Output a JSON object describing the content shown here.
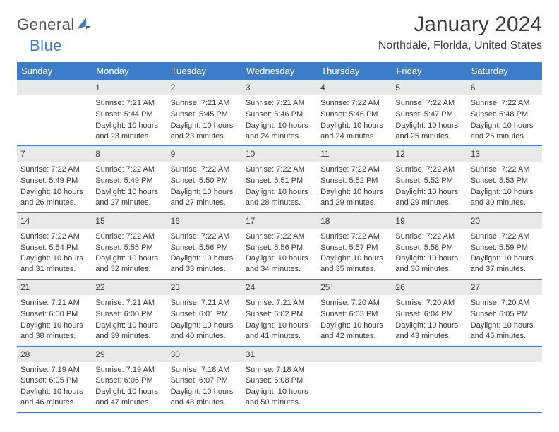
{
  "brand": {
    "part1": "General",
    "part2": "Blue"
  },
  "title": "January 2024",
  "location": "Northdale, Florida, United States",
  "colors": {
    "accent": "#3d7cc9",
    "daynum_bg": "#e9e9e9",
    "text": "#3a3a3a",
    "background": "#ffffff"
  },
  "dayHeaders": [
    "Sunday",
    "Monday",
    "Tuesday",
    "Wednesday",
    "Thursday",
    "Friday",
    "Saturday"
  ],
  "weeks": [
    [
      null,
      {
        "n": "1",
        "sr": "Sunrise: 7:21 AM",
        "ss": "Sunset: 5:44 PM",
        "dl": "Daylight: 10 hours and 23 minutes."
      },
      {
        "n": "2",
        "sr": "Sunrise: 7:21 AM",
        "ss": "Sunset: 5:45 PM",
        "dl": "Daylight: 10 hours and 23 minutes."
      },
      {
        "n": "3",
        "sr": "Sunrise: 7:21 AM",
        "ss": "Sunset: 5:46 PM",
        "dl": "Daylight: 10 hours and 24 minutes."
      },
      {
        "n": "4",
        "sr": "Sunrise: 7:22 AM",
        "ss": "Sunset: 5:46 PM",
        "dl": "Daylight: 10 hours and 24 minutes."
      },
      {
        "n": "5",
        "sr": "Sunrise: 7:22 AM",
        "ss": "Sunset: 5:47 PM",
        "dl": "Daylight: 10 hours and 25 minutes."
      },
      {
        "n": "6",
        "sr": "Sunrise: 7:22 AM",
        "ss": "Sunset: 5:48 PM",
        "dl": "Daylight: 10 hours and 25 minutes."
      }
    ],
    [
      {
        "n": "7",
        "sr": "Sunrise: 7:22 AM",
        "ss": "Sunset: 5:49 PM",
        "dl": "Daylight: 10 hours and 26 minutes."
      },
      {
        "n": "8",
        "sr": "Sunrise: 7:22 AM",
        "ss": "Sunset: 5:49 PM",
        "dl": "Daylight: 10 hours and 27 minutes."
      },
      {
        "n": "9",
        "sr": "Sunrise: 7:22 AM",
        "ss": "Sunset: 5:50 PM",
        "dl": "Daylight: 10 hours and 27 minutes."
      },
      {
        "n": "10",
        "sr": "Sunrise: 7:22 AM",
        "ss": "Sunset: 5:51 PM",
        "dl": "Daylight: 10 hours and 28 minutes."
      },
      {
        "n": "11",
        "sr": "Sunrise: 7:22 AM",
        "ss": "Sunset: 5:52 PM",
        "dl": "Daylight: 10 hours and 29 minutes."
      },
      {
        "n": "12",
        "sr": "Sunrise: 7:22 AM",
        "ss": "Sunset: 5:52 PM",
        "dl": "Daylight: 10 hours and 29 minutes."
      },
      {
        "n": "13",
        "sr": "Sunrise: 7:22 AM",
        "ss": "Sunset: 5:53 PM",
        "dl": "Daylight: 10 hours and 30 minutes."
      }
    ],
    [
      {
        "n": "14",
        "sr": "Sunrise: 7:22 AM",
        "ss": "Sunset: 5:54 PM",
        "dl": "Daylight: 10 hours and 31 minutes."
      },
      {
        "n": "15",
        "sr": "Sunrise: 7:22 AM",
        "ss": "Sunset: 5:55 PM",
        "dl": "Daylight: 10 hours and 32 minutes."
      },
      {
        "n": "16",
        "sr": "Sunrise: 7:22 AM",
        "ss": "Sunset: 5:56 PM",
        "dl": "Daylight: 10 hours and 33 minutes."
      },
      {
        "n": "17",
        "sr": "Sunrise: 7:22 AM",
        "ss": "Sunset: 5:56 PM",
        "dl": "Daylight: 10 hours and 34 minutes."
      },
      {
        "n": "18",
        "sr": "Sunrise: 7:22 AM",
        "ss": "Sunset: 5:57 PM",
        "dl": "Daylight: 10 hours and 35 minutes."
      },
      {
        "n": "19",
        "sr": "Sunrise: 7:22 AM",
        "ss": "Sunset: 5:58 PM",
        "dl": "Daylight: 10 hours and 36 minutes."
      },
      {
        "n": "20",
        "sr": "Sunrise: 7:22 AM",
        "ss": "Sunset: 5:59 PM",
        "dl": "Daylight: 10 hours and 37 minutes."
      }
    ],
    [
      {
        "n": "21",
        "sr": "Sunrise: 7:21 AM",
        "ss": "Sunset: 6:00 PM",
        "dl": "Daylight: 10 hours and 38 minutes."
      },
      {
        "n": "22",
        "sr": "Sunrise: 7:21 AM",
        "ss": "Sunset: 6:00 PM",
        "dl": "Daylight: 10 hours and 39 minutes."
      },
      {
        "n": "23",
        "sr": "Sunrise: 7:21 AM",
        "ss": "Sunset: 6:01 PM",
        "dl": "Daylight: 10 hours and 40 minutes."
      },
      {
        "n": "24",
        "sr": "Sunrise: 7:21 AM",
        "ss": "Sunset: 6:02 PM",
        "dl": "Daylight: 10 hours and 41 minutes."
      },
      {
        "n": "25",
        "sr": "Sunrise: 7:20 AM",
        "ss": "Sunset: 6:03 PM",
        "dl": "Daylight: 10 hours and 42 minutes."
      },
      {
        "n": "26",
        "sr": "Sunrise: 7:20 AM",
        "ss": "Sunset: 6:04 PM",
        "dl": "Daylight: 10 hours and 43 minutes."
      },
      {
        "n": "27",
        "sr": "Sunrise: 7:20 AM",
        "ss": "Sunset: 6:05 PM",
        "dl": "Daylight: 10 hours and 45 minutes."
      }
    ],
    [
      {
        "n": "28",
        "sr": "Sunrise: 7:19 AM",
        "ss": "Sunset: 6:05 PM",
        "dl": "Daylight: 10 hours and 46 minutes."
      },
      {
        "n": "29",
        "sr": "Sunrise: 7:19 AM",
        "ss": "Sunset: 6:06 PM",
        "dl": "Daylight: 10 hours and 47 minutes."
      },
      {
        "n": "30",
        "sr": "Sunrise: 7:18 AM",
        "ss": "Sunset: 6:07 PM",
        "dl": "Daylight: 10 hours and 48 minutes."
      },
      {
        "n": "31",
        "sr": "Sunrise: 7:18 AM",
        "ss": "Sunset: 6:08 PM",
        "dl": "Daylight: 10 hours and 50 minutes."
      },
      null,
      null,
      null
    ]
  ]
}
